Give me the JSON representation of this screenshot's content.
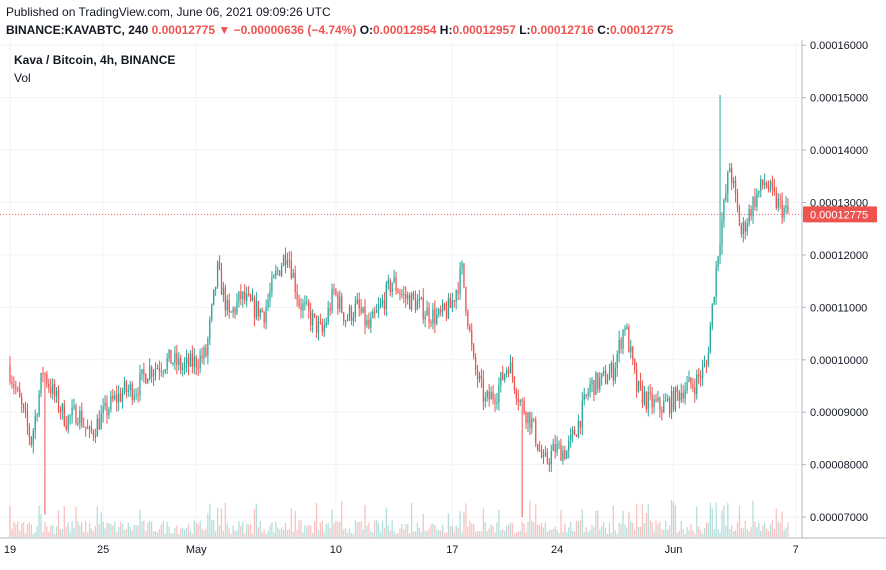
{
  "header": {
    "published": "Published on TradingView.com, June 06, 2021 09:09:26 UTC",
    "symbol": "BINANCE:KAVABTC, 240",
    "last": "0.00012775",
    "change": "−0.00000636 (−4.74%)",
    "o_label": "O:",
    "o": "0.00012954",
    "h_label": "H:",
    "h": "0.00012957",
    "l_label": "L:",
    "l": "0.00012716",
    "c_label": "C:",
    "c": "0.00012775"
  },
  "legend": {
    "title": "Kava / Bitcoin, 4h, BINANCE",
    "volume_label": "Vol"
  },
  "colors": {
    "up": "#26a69a",
    "down": "#ef5350",
    "grid": "#f0f3fa",
    "axis": "#b2b5be"
  },
  "chart_data": {
    "type": "candlestick",
    "interval": "4h",
    "y_ticks": [
      "0.00007000",
      "0.00008000",
      "0.00009000",
      "0.00010000",
      "0.00011000",
      "0.00012000",
      "0.00013000",
      "0.00014000",
      "0.00015000",
      "0.00016000"
    ],
    "ylim": [
      6.62e-05,
      0.000161
    ],
    "x_ticks": [
      "19",
      "25",
      "May",
      "10",
      "17",
      "24",
      "Jun",
      "7"
    ],
    "last_price": "0.00012775",
    "price_path": [
      {
        "day": 0,
        "close": 9.9e-05
      },
      {
        "day": 1,
        "close": 9.2e-05
      },
      {
        "day": 2,
        "close": 8.45e-05
      },
      {
        "day": 3,
        "close": 9.8e-05
      },
      {
        "day": 4,
        "close": 9.3e-05
      },
      {
        "day": 5,
        "close": 8.85e-05
      },
      {
        "day": 6,
        "close": 9e-05
      },
      {
        "day": 7,
        "close": 8.55e-05
      },
      {
        "day": 8,
        "close": 8.9e-05
      },
      {
        "day": 9,
        "close": 9.2e-05
      },
      {
        "day": 10,
        "close": 9.4e-05
      },
      {
        "day": 11,
        "close": 9.45e-05
      },
      {
        "day": 12,
        "close": 9.8e-05
      },
      {
        "day": 13,
        "close": 9.9e-05
      },
      {
        "day": 14,
        "close": 0.0001
      },
      {
        "day": 15,
        "close": 9.85e-05
      },
      {
        "day": 16,
        "close": 9.95e-05
      },
      {
        "day": 17,
        "close": 0.000101
      },
      {
        "day": 18,
        "close": 0.000117
      },
      {
        "day": 19,
        "close": 0.000108
      },
      {
        "day": 20,
        "close": 0.000112
      },
      {
        "day": 21,
        "close": 0.00011
      },
      {
        "day": 22,
        "close": 0.000109
      },
      {
        "day": 23,
        "close": 0.000116
      },
      {
        "day": 24,
        "close": 0.000121
      },
      {
        "day": 25,
        "close": 0.000111
      },
      {
        "day": 26,
        "close": 0.000108
      },
      {
        "day": 27,
        "close": 0.000105
      },
      {
        "day": 28,
        "close": 0.000113
      },
      {
        "day": 29,
        "close": 0.000108
      },
      {
        "day": 30,
        "close": 0.00011
      },
      {
        "day": 31,
        "close": 0.000106
      },
      {
        "day": 32,
        "close": 0.00011
      },
      {
        "day": 33,
        "close": 0.000115
      },
      {
        "day": 34,
        "close": 0.000112
      },
      {
        "day": 35,
        "close": 0.000111
      },
      {
        "day": 36,
        "close": 0.000109
      },
      {
        "day": 37,
        "close": 0.000108
      },
      {
        "day": 38,
        "close": 0.00011
      },
      {
        "day": 39,
        "close": 0.000117
      },
      {
        "day": 40,
        "close": 9.9e-05
      },
      {
        "day": 41,
        "close": 9.2e-05
      },
      {
        "day": 42,
        "close": 9.4e-05
      },
      {
        "day": 43,
        "close": 9.95e-05
      },
      {
        "day": 44,
        "close": 9.2e-05
      },
      {
        "day": 45,
        "close": 8.8e-05
      },
      {
        "day": 46,
        "close": 8e-05
      },
      {
        "day": 47,
        "close": 8.3e-05
      },
      {
        "day": 48,
        "close": 8.25e-05
      },
      {
        "day": 49,
        "close": 8.8e-05
      },
      {
        "day": 50,
        "close": 9.5e-05
      },
      {
        "day": 51,
        "close": 9.6e-05
      },
      {
        "day": 52,
        "close": 9.8e-05
      },
      {
        "day": 53,
        "close": 0.000107
      },
      {
        "day": 54,
        "close": 9.45e-05
      },
      {
        "day": 55,
        "close": 9.2e-05
      },
      {
        "day": 56,
        "close": 9.1e-05
      },
      {
        "day": 57,
        "close": 9.2e-05
      },
      {
        "day": 58,
        "close": 9.45e-05
      },
      {
        "day": 59,
        "close": 9.55e-05
      },
      {
        "day": 60,
        "close": 9.9e-05
      },
      {
        "day": 61,
        "close": 0.000121
      },
      {
        "day": 62,
        "close": 0.000137
      },
      {
        "day": 63,
        "close": 0.000124
      },
      {
        "day": 64,
        "close": 0.00013
      },
      {
        "day": 65,
        "close": 0.000134
      },
      {
        "day": 66,
        "close": 0.00013
      },
      {
        "day": 67,
        "close": 0.00012775
      }
    ],
    "spikes": [
      {
        "day": 3,
        "low": 7.05e-05
      },
      {
        "day": 44,
        "low": 7e-05
      },
      {
        "day": 61,
        "high": 0.0001505
      }
    ]
  }
}
